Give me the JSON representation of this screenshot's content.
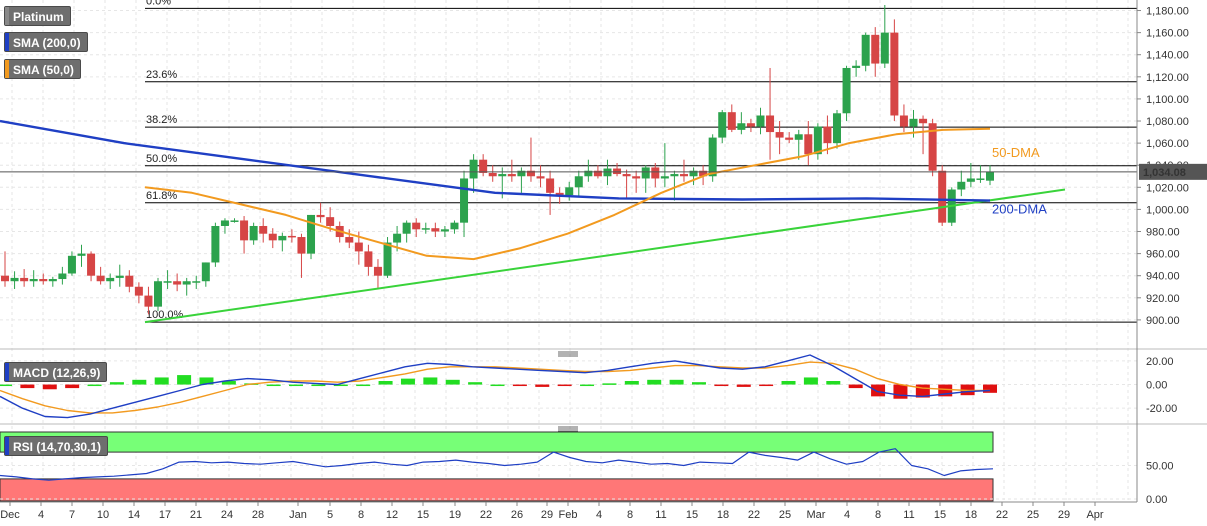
{
  "chart_data": [
    {
      "type": "candlestick",
      "title": "Platinum",
      "indicators": [
        "SMA (200,0)",
        "SMA (50,0)"
      ],
      "current_price": "1,034.08",
      "ylim": [
        880,
        1185
      ],
      "y_ticks": [
        900,
        920,
        940,
        960,
        980,
        1000,
        1020,
        1040,
        1060,
        1080,
        1100,
        1120,
        1140,
        1160,
        1180
      ],
      "x_tick_labels": [
        "Dec",
        "4",
        "7",
        "10",
        "14",
        "17",
        "21",
        "24",
        "28",
        "Jan",
        "5",
        "8",
        "12",
        "15",
        "19",
        "22",
        "26",
        "29",
        "Feb",
        "4",
        "8",
        "11",
        "15",
        "18",
        "22",
        "25",
        "Mar",
        "4",
        "8",
        "11",
        "15",
        "18",
        "22",
        "25",
        "29",
        "Apr"
      ],
      "fibonacci": [
        {
          "label": "0.0%",
          "value": 1182
        },
        {
          "label": "23.6%",
          "value": 1115.5
        },
        {
          "label": "38.2%",
          "value": 1074.5
        },
        {
          "label": "50.0%",
          "value": 1039.5
        },
        {
          "label": "61.8%",
          "value": 1006
        },
        {
          "label": "100.0%",
          "value": 898
        }
      ],
      "annotations": [
        "50-DMA",
        "200-DMA"
      ],
      "colors": {
        "up": "#2ca24d",
        "down": "#d64545",
        "sma200": "#1f3fc4",
        "sma50": "#f29a1f",
        "trend": "#39d33a",
        "price_label": "#555555"
      },
      "candles": [
        [
          940,
          962,
          930,
          935
        ],
        [
          935,
          944,
          928,
          938
        ],
        [
          938,
          946,
          930,
          935
        ],
        [
          935,
          945,
          930,
          937
        ],
        [
          937,
          942,
          932,
          935
        ],
        [
          935,
          939,
          930,
          937
        ],
        [
          937,
          948,
          932,
          942
        ],
        [
          942,
          962,
          940,
          958
        ],
        [
          958,
          968,
          948,
          960
        ],
        [
          960,
          962,
          935,
          940
        ],
        [
          940,
          948,
          932,
          935
        ],
        [
          935,
          942,
          928,
          938
        ],
        [
          938,
          950,
          930,
          940
        ],
        [
          940,
          945,
          925,
          930
        ],
        [
          930,
          934,
          915,
          922
        ],
        [
          922,
          930,
          905,
          912
        ],
        [
          912,
          938,
          908,
          935
        ],
        [
          935,
          945,
          928,
          935
        ],
        [
          935,
          942,
          926,
          932
        ],
        [
          932,
          938,
          922,
          935
        ],
        [
          935,
          940,
          928,
          935
        ],
        [
          935,
          952,
          930,
          952
        ],
        [
          952,
          988,
          948,
          985
        ],
        [
          985,
          992,
          978,
          990
        ],
        [
          990,
          992,
          988,
          990
        ],
        [
          990,
          994,
          960,
          972
        ],
        [
          972,
          988,
          968,
          985
        ],
        [
          985,
          992,
          970,
          978
        ],
        [
          978,
          983,
          965,
          972
        ],
        [
          972,
          979,
          962,
          976
        ],
        [
          976,
          982,
          970,
          975
        ],
        [
          975,
          978,
          938,
          960
        ],
        [
          960,
          995,
          955,
          995
        ],
        [
          995,
          1006,
          988,
          993
        ],
        [
          993,
          1002,
          980,
          985
        ],
        [
          985,
          989,
          970,
          975
        ],
        [
          975,
          982,
          965,
          970
        ],
        [
          970,
          980,
          950,
          962
        ],
        [
          962,
          968,
          940,
          948
        ],
        [
          948,
          955,
          928,
          940
        ],
        [
          940,
          975,
          938,
          970
        ],
        [
          970,
          985,
          962,
          978
        ],
        [
          978,
          990,
          970,
          988
        ],
        [
          988,
          992,
          975,
          982
        ],
        [
          982,
          988,
          978,
          983
        ],
        [
          983,
          988,
          975,
          980
        ],
        [
          980,
          985,
          975,
          982
        ],
        [
          982,
          990,
          978,
          988
        ],
        [
          988,
          1035,
          975,
          1028
        ],
        [
          1028,
          1050,
          1015,
          1045
        ],
        [
          1045,
          1050,
          1030,
          1033
        ],
        [
          1033,
          1040,
          1025,
          1030
        ],
        [
          1030,
          1038,
          1010,
          1032
        ],
        [
          1032,
          1045,
          1025,
          1030
        ],
        [
          1030,
          1038,
          1015,
          1035
        ],
        [
          1035,
          1065,
          1025,
          1030
        ],
        [
          1030,
          1040,
          1020,
          1028
        ],
        [
          1028,
          1035,
          995,
          1015
        ],
        [
          1015,
          1020,
          1005,
          1013
        ],
        [
          1013,
          1025,
          1008,
          1020
        ],
        [
          1020,
          1035,
          1012,
          1030
        ],
        [
          1030,
          1045,
          1025,
          1035
        ],
        [
          1035,
          1040,
          1028,
          1030
        ],
        [
          1030,
          1045,
          1022,
          1037
        ],
        [
          1037,
          1042,
          1030,
          1032
        ],
        [
          1032,
          1036,
          1010,
          1030
        ],
        [
          1030,
          1035,
          1015,
          1028
        ],
        [
          1028,
          1040,
          1015,
          1038
        ],
        [
          1038,
          1042,
          1020,
          1028
        ],
        [
          1028,
          1060,
          1020,
          1030
        ],
        [
          1030,
          1035,
          1008,
          1032
        ],
        [
          1032,
          1045,
          1025,
          1030
        ],
        [
          1030,
          1038,
          1022,
          1035
        ],
        [
          1035,
          1040,
          1022,
          1030
        ],
        [
          1030,
          1068,
          1025,
          1065
        ],
        [
          1065,
          1090,
          1060,
          1088
        ],
        [
          1088,
          1095,
          1070,
          1072
        ],
        [
          1072,
          1088,
          1068,
          1078
        ],
        [
          1078,
          1082,
          1070,
          1075
        ],
        [
          1075,
          1092,
          1068,
          1085
        ],
        [
          1085,
          1128,
          1045,
          1070
        ],
        [
          1070,
          1080,
          1050,
          1065
        ],
        [
          1065,
          1070,
          1060,
          1063
        ],
        [
          1063,
          1072,
          1045,
          1068
        ],
        [
          1068,
          1080,
          1040,
          1050
        ],
        [
          1050,
          1078,
          1045,
          1075
        ],
        [
          1075,
          1085,
          1050,
          1060
        ],
        [
          1060,
          1090,
          1055,
          1087
        ],
        [
          1087,
          1130,
          1080,
          1128
        ],
        [
          1128,
          1135,
          1120,
          1130
        ],
        [
          1130,
          1160,
          1125,
          1158
        ],
        [
          1158,
          1165,
          1120,
          1132
        ],
        [
          1132,
          1185,
          1128,
          1160
        ],
        [
          1160,
          1172,
          1080,
          1085
        ],
        [
          1085,
          1095,
          1070,
          1075
        ],
        [
          1075,
          1090,
          1065,
          1082
        ],
        [
          1082,
          1085,
          1050,
          1078
        ],
        [
          1078,
          1082,
          1030,
          1035
        ],
        [
          1035,
          1040,
          985,
          988
        ],
        [
          988,
          1020,
          985,
          1018
        ],
        [
          1018,
          1035,
          1012,
          1025
        ],
        [
          1025,
          1042,
          1020,
          1028
        ],
        [
          1028,
          1040,
          1024,
          1028
        ],
        [
          1026,
          1040,
          1022,
          1034
        ]
      ],
      "sma200": [
        1080,
        1060,
        1045,
        1030,
        1015,
        1010,
        1009,
        1010,
        1008
      ],
      "sma50": [
        1020,
        1015,
        1005,
        995,
        982,
        970,
        958,
        955,
        965,
        978,
        995,
        1015,
        1032,
        1040,
        1048,
        1060,
        1068,
        1072,
        1073
      ],
      "macd_panel": {
        "label": "MACD (12,26,9)",
        "y_ticks": [
          20,
          0,
          -20
        ],
        "ylim": [
          -30,
          25
        ],
        "macd": [
          -10,
          -20,
          -27,
          -28,
          -25,
          -20,
          -15,
          -10,
          -5,
          0,
          3,
          5,
          4,
          2,
          1,
          0,
          5,
          10,
          15,
          18,
          17,
          15,
          14,
          13,
          12,
          11,
          10,
          12,
          15,
          18,
          20,
          17,
          14,
          13,
          15,
          20,
          25,
          16,
          5,
          -6,
          -9,
          -10,
          -8,
          -6,
          -5
        ],
        "signal": [
          -5,
          -12,
          -18,
          -22,
          -24,
          -24,
          -22,
          -19,
          -15,
          -10,
          -5,
          0,
          2,
          3,
          3,
          2,
          3,
          6,
          9,
          13,
          15,
          15,
          15,
          14,
          13,
          12,
          11,
          11,
          12,
          14,
          16,
          16,
          15,
          14,
          14,
          16,
          19,
          18,
          13,
          5,
          0,
          -3,
          -4,
          -5,
          -5
        ],
        "histogram": [
          0,
          -3,
          -4,
          -3,
          0,
          2,
          4,
          6,
          8,
          6,
          3,
          1,
          0,
          0,
          0,
          0,
          0,
          3,
          5,
          6,
          4,
          2,
          0,
          -1,
          -2,
          -1,
          0,
          1,
          3,
          4,
          4,
          2,
          -1,
          -2,
          -1,
          3,
          6,
          3,
          -3,
          -10,
          -12,
          -11,
          -10,
          -9,
          -7
        ]
      },
      "rsi_panel": {
        "label": "RSI (14,70,30,1)",
        "y_ticks": [
          50.0,
          0.0
        ],
        "ylim": [
          -3,
          100
        ],
        "overbought": 70,
        "oversold": 30,
        "rsi": [
          35,
          33,
          30,
          28,
          30,
          32,
          33,
          34,
          36,
          38,
          45,
          55,
          56,
          54,
          55,
          53,
          52,
          54,
          56,
          52,
          48,
          50,
          53,
          55,
          52,
          50,
          55,
          56,
          58,
          55,
          53,
          50,
          52,
          55,
          70,
          62,
          56,
          54,
          58,
          55,
          52,
          53,
          50,
          55,
          54,
          53,
          70,
          65,
          62,
          58,
          70,
          60,
          52,
          56,
          70,
          75,
          50,
          45,
          35,
          42,
          44,
          45
        ]
      }
    }
  ]
}
